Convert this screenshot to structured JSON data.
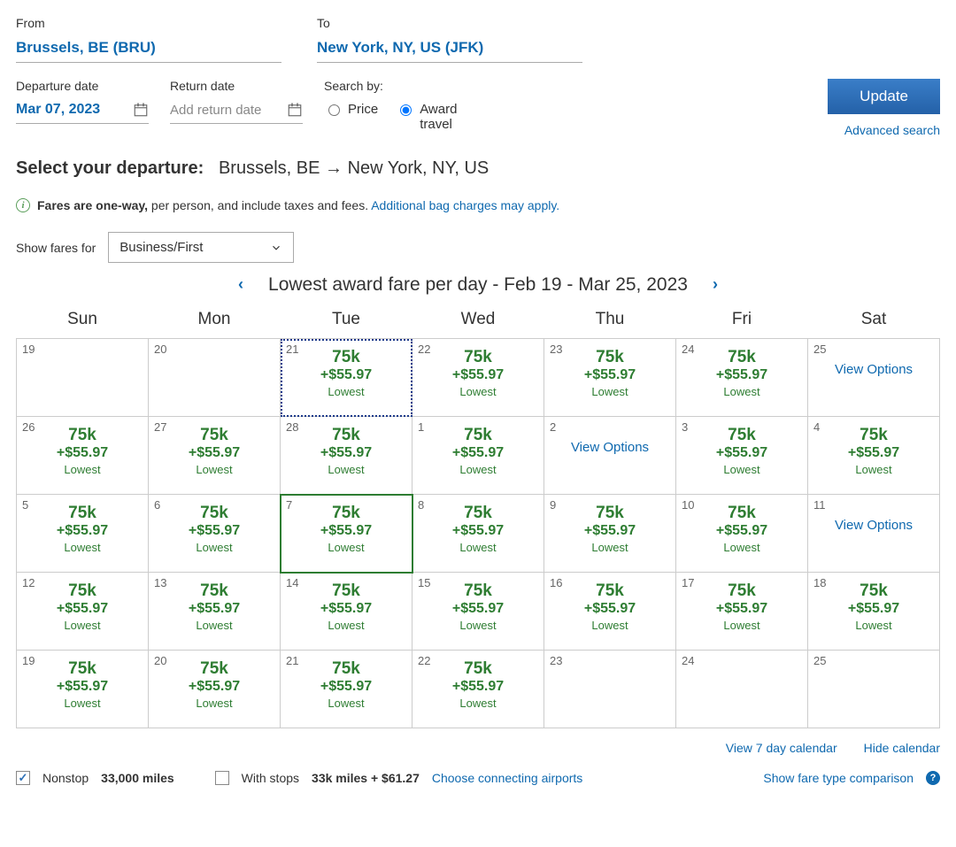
{
  "colors": {
    "link": "#0f69af",
    "green": "#2e7d32",
    "button_bg": "#2c6fb6",
    "border": "#cccccc"
  },
  "search": {
    "from_label": "From",
    "from_value": "Brussels, BE (BRU)",
    "to_label": "To",
    "to_value": "New York, NY, US (JFK)",
    "dep_label": "Departure date",
    "dep_value": "Mar 07, 2023",
    "ret_label": "Return date",
    "ret_placeholder": "Add return date",
    "searchby_label": "Search by:",
    "price_label": "Price",
    "award_label": "Award travel",
    "award_selected": true,
    "update_label": "Update",
    "advanced_label": "Advanced search"
  },
  "departure": {
    "heading_bold": "Select your departure:",
    "heading_rest": "Brussels, BE → New York, NY, US"
  },
  "note": {
    "bold": "Fares are one-way,",
    "rest": "per person, and include taxes and fees.",
    "link": "Additional bag charges may apply."
  },
  "fare_select": {
    "label": "Show fares for",
    "value": "Business/First"
  },
  "calendar": {
    "title": "Lowest award fare per day - Feb 19 - Mar 25, 2023",
    "days": [
      "Sun",
      "Mon",
      "Tue",
      "Wed",
      "Thu",
      "Fri",
      "Sat"
    ],
    "default_fare": {
      "miles": "75k",
      "cash": "+$55.97",
      "lowest": "Lowest"
    },
    "view_options": "View Options",
    "cells": [
      [
        {
          "d": "19",
          "empty": true
        },
        {
          "d": "20",
          "empty": true
        },
        {
          "d": "21",
          "dotted": true
        },
        {
          "d": "22"
        },
        {
          "d": "23"
        },
        {
          "d": "24"
        },
        {
          "d": "25",
          "vo": true
        }
      ],
      [
        {
          "d": "26"
        },
        {
          "d": "27"
        },
        {
          "d": "28"
        },
        {
          "d": "1"
        },
        {
          "d": "2",
          "vo": true
        },
        {
          "d": "3"
        },
        {
          "d": "4"
        }
      ],
      [
        {
          "d": "5"
        },
        {
          "d": "6"
        },
        {
          "d": "7",
          "selected": true
        },
        {
          "d": "8"
        },
        {
          "d": "9"
        },
        {
          "d": "10"
        },
        {
          "d": "11",
          "vo": true
        }
      ],
      [
        {
          "d": "12"
        },
        {
          "d": "13"
        },
        {
          "d": "14"
        },
        {
          "d": "15"
        },
        {
          "d": "16"
        },
        {
          "d": "17"
        },
        {
          "d": "18"
        }
      ],
      [
        {
          "d": "19"
        },
        {
          "d": "20"
        },
        {
          "d": "21"
        },
        {
          "d": "22"
        },
        {
          "d": "23",
          "empty": true
        },
        {
          "d": "24",
          "empty": true
        },
        {
          "d": "25",
          "empty": true
        }
      ]
    ]
  },
  "footer_links": {
    "view7": "View 7 day calendar",
    "hide": "Hide calendar"
  },
  "bottom": {
    "nonstop_label": "Nonstop",
    "nonstop_miles": "33,000 miles",
    "withstops_label": "With stops",
    "withstops_miles": "33k miles + $61.27",
    "choose_airports": "Choose connecting airports",
    "show_compare": "Show fare type comparison"
  }
}
